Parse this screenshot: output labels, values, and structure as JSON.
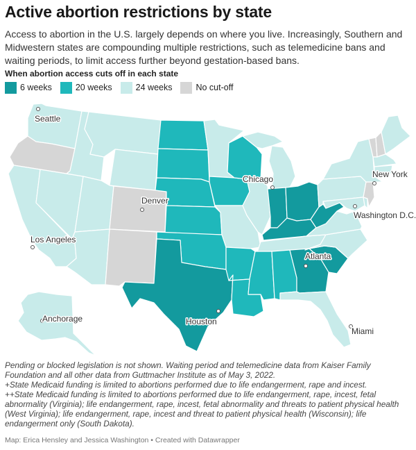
{
  "title": "Active abortion restrictions by state",
  "subtitle": "Access to abortion in the U.S. largely depends on where you live. Increasingly, Southern and Midwestern states are compounding multiple restrictions, such as telemedicine bans and waiting periods, to limit access further beyond gestation-based bans.",
  "legend": {
    "title": "When abortion access cuts off in each state",
    "items": [
      {
        "label": "6 weeks",
        "color": "#139a9e"
      },
      {
        "label": "20 weeks",
        "color": "#1fb8bb"
      },
      {
        "label": "24 weeks",
        "color": "#c8ebea"
      },
      {
        "label": "No cut-off",
        "color": "#d6d6d6"
      }
    ]
  },
  "colors": {
    "six_weeks": "#139a9e",
    "twenty_weeks": "#1fb8bb",
    "twenty_four_weeks": "#c8ebea",
    "no_cutoff": "#d6d6d6",
    "state_border": "#ffffff"
  },
  "cities": [
    {
      "name": "Seattle"
    },
    {
      "name": "Chicago"
    },
    {
      "name": "New York"
    },
    {
      "name": "Denver"
    },
    {
      "name": "Washington D.C."
    },
    {
      "name": "Los Angeles"
    },
    {
      "name": "Atlanta"
    },
    {
      "name": "Anchorage"
    },
    {
      "name": "Houston"
    },
    {
      "name": "Miami"
    }
  ],
  "notes": [
    "Pending or blocked legislation is not shown. Waiting period and telemedicine data from Kaiser Family Foundation and all other data from Guttmacher Institute as of May 3, 2022.",
    "+State Medicaid funding is limited to abortions performed due to life endangerment, rape and incest.",
    "++State Medicaid funding is limited to abortions performed due to life endangerment, rape, incest, fetal abnormality (Virginia); life endangerment, rape, incest, fetal abnormality and threats to patient physical health (West Virginia); life endangerment, rape, incest and threat to patient physical health (Wisconsin); life endangerment only (South Dakota)."
  ],
  "credit": "Map: Erica Hensley and Jessica Washington • Created with Datawrapper"
}
